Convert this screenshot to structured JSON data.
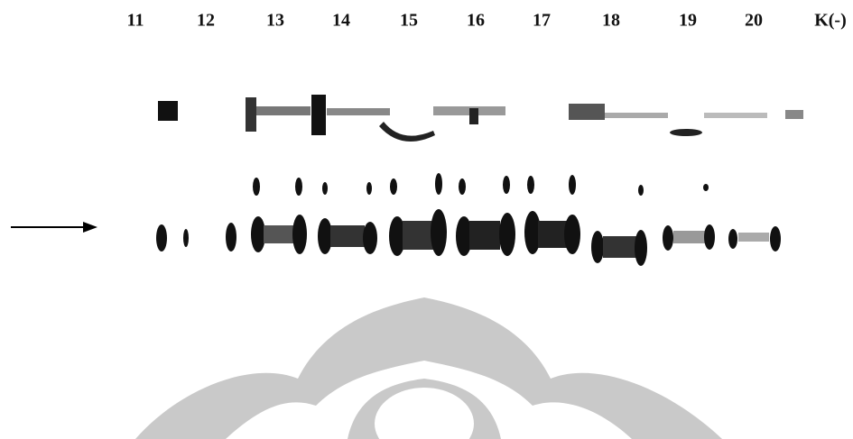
{
  "lanes": [
    "11",
    "12",
    "13",
    "14",
    "15",
    "16",
    "17",
    "18",
    "19",
    "20",
    "K(-)"
  ]
}
